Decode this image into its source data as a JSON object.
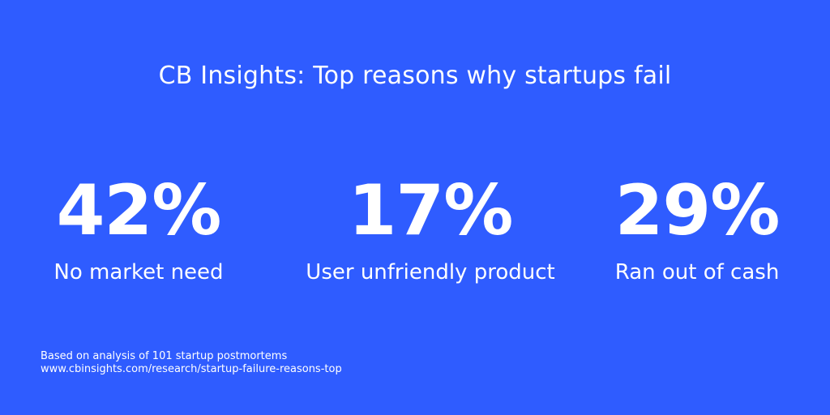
{
  "colors": {
    "background": "#2f5cff",
    "text": "#ffffff"
  },
  "title": "CB Insights: Top reasons why startups fail",
  "stats": [
    {
      "value": "42%",
      "label": "No market need"
    },
    {
      "value": "17%",
      "label": "User unfriendly product"
    },
    {
      "value": "29%",
      "label": "Ran out of cash"
    }
  ],
  "footer": {
    "note": "Based on analysis of 101 startup postmortems",
    "source": "www.cbinsights.com/research/startup-failure-reasons-top"
  }
}
